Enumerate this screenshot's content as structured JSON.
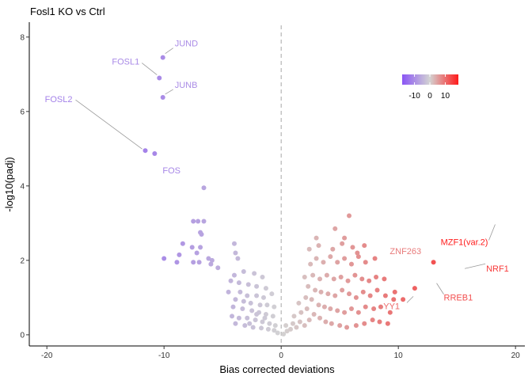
{
  "chart_data": {
    "type": "scatter",
    "title": "Fosl1 KO vs Ctrl",
    "xlabel": "Bias corrected deviations",
    "ylabel": "-log10(padj)",
    "xlim": [
      -21.5,
      20.8
    ],
    "ylim": [
      -0.3,
      8.4
    ],
    "xticks": [
      -20,
      -10,
      0,
      10,
      20
    ],
    "yticks": [
      0,
      2,
      4,
      6,
      8
    ],
    "vline_x": 0,
    "colorscale": {
      "low": "#8a55f5",
      "mid": "#d3d3d3",
      "high": "#ff1a1a",
      "ticks": [
        -10,
        0,
        10
      ],
      "limits": [
        -18,
        18.5
      ],
      "placement": "top-right"
    },
    "labeled_points": [
      {
        "label": "JUND",
        "x": -10.1,
        "y": 7.45
      },
      {
        "label": "FOSL1",
        "x": -10.4,
        "y": 6.9
      },
      {
        "label": "JUNB",
        "x": -10.1,
        "y": 6.38
      },
      {
        "label": "FOSL2",
        "x": -11.6,
        "y": 4.95
      },
      {
        "label": "FOS",
        "x": -10.8,
        "y": 4.87
      },
      {
        "label": "MZF1(var.2)",
        "x": 18.4,
        "y": 3.05
      },
      {
        "label": "ZNF263",
        "x": 8.8,
        "y": 2.3
      },
      {
        "label": "NRF1",
        "x": 15.4,
        "y": 1.78
      },
      {
        "label": "RREB1",
        "x": 13.2,
        "y": 1.45
      },
      {
        "label": "YY1",
        "x": 10.6,
        "y": 0.82
      }
    ],
    "points": [
      [
        -10.1,
        7.45
      ],
      [
        -10.4,
        6.9
      ],
      [
        -10.1,
        6.38
      ],
      [
        -11.6,
        4.95
      ],
      [
        -10.8,
        4.87
      ],
      [
        -6.6,
        3.95
      ],
      [
        -7.5,
        3.05
      ],
      [
        -7.1,
        3.05
      ],
      [
        -6.6,
        3.05
      ],
      [
        -6.9,
        2.75
      ],
      [
        -6.8,
        2.7
      ],
      [
        -8.4,
        2.45
      ],
      [
        -7.6,
        2.35
      ],
      [
        -6.9,
        2.35
      ],
      [
        -4.0,
        2.45
      ],
      [
        -10.0,
        2.05
      ],
      [
        -8.7,
        2.15
      ],
      [
        -7.2,
        2.2
      ],
      [
        -6.2,
        2.05
      ],
      [
        -5.9,
        2.0
      ],
      [
        -3.9,
        2.2
      ],
      [
        -3.7,
        2.05
      ],
      [
        -8.9,
        1.95
      ],
      [
        -7.5,
        1.95
      ],
      [
        -7.0,
        1.95
      ],
      [
        -6.0,
        1.9
      ],
      [
        -5.4,
        1.8
      ],
      [
        -4.0,
        1.6
      ],
      [
        -3.2,
        1.7
      ],
      [
        -2.3,
        1.65
      ],
      [
        -1.6,
        1.55
      ],
      [
        -4.3,
        1.45
      ],
      [
        -3.6,
        1.4
      ],
      [
        -2.8,
        1.35
      ],
      [
        -2.1,
        1.3
      ],
      [
        -1.3,
        1.25
      ],
      [
        -4.5,
        1.15
      ],
      [
        -3.5,
        1.15
      ],
      [
        -2.9,
        1.05
      ],
      [
        -2.1,
        1.05
      ],
      [
        -1.5,
        1.0
      ],
      [
        -0.8,
        1.1
      ],
      [
        -3.9,
        0.95
      ],
      [
        -3.2,
        0.9
      ],
      [
        -2.6,
        0.85
      ],
      [
        -1.8,
        0.8
      ],
      [
        -1.2,
        0.8
      ],
      [
        -0.6,
        0.75
      ],
      [
        -4.1,
        0.75
      ],
      [
        -3.3,
        0.7
      ],
      [
        -2.5,
        0.65
      ],
      [
        -1.9,
        0.6
      ],
      [
        -1.3,
        0.55
      ],
      [
        -0.7,
        0.5
      ],
      [
        -4.2,
        0.5
      ],
      [
        -3.6,
        0.45
      ],
      [
        -2.9,
        0.45
      ],
      [
        -2.2,
        0.4
      ],
      [
        -1.6,
        0.35
      ],
      [
        -1.0,
        0.3
      ],
      [
        -0.5,
        0.25
      ],
      [
        -3.9,
        0.3
      ],
      [
        -3.1,
        0.25
      ],
      [
        -2.4,
        0.2
      ],
      [
        -1.7,
        0.18
      ],
      [
        -1.1,
        0.15
      ],
      [
        -0.6,
        0.12
      ],
      [
        -0.3,
        0.05
      ],
      [
        -2.1,
        0.55
      ],
      [
        -2.7,
        0.3
      ],
      [
        -1.4,
        0.45
      ],
      [
        0.2,
        0.02
      ],
      [
        0.5,
        0.1
      ],
      [
        0.8,
        0.15
      ],
      [
        0.4,
        0.25
      ],
      [
        1.0,
        0.3
      ],
      [
        1.3,
        0.2
      ],
      [
        1.6,
        0.35
      ],
      [
        2.0,
        0.25
      ],
      [
        2.4,
        0.4
      ],
      [
        1.1,
        0.5
      ],
      [
        1.7,
        0.6
      ],
      [
        2.2,
        0.7
      ],
      [
        2.8,
        0.55
      ],
      [
        3.3,
        0.45
      ],
      [
        3.8,
        0.35
      ],
      [
        4.3,
        0.3
      ],
      [
        5.0,
        0.25
      ],
      [
        5.6,
        0.2
      ],
      [
        6.4,
        0.25
      ],
      [
        7.1,
        0.3
      ],
      [
        7.8,
        0.4
      ],
      [
        8.4,
        0.35
      ],
      [
        9.1,
        0.3
      ],
      [
        1.5,
        0.85
      ],
      [
        2.1,
        1.0
      ],
      [
        2.6,
        0.95
      ],
      [
        3.2,
        0.8
      ],
      [
        3.7,
        0.75
      ],
      [
        4.2,
        0.7
      ],
      [
        4.8,
        0.65
      ],
      [
        5.4,
        0.6
      ],
      [
        6.0,
        0.7
      ],
      [
        6.6,
        0.6
      ],
      [
        7.2,
        0.75
      ],
      [
        7.9,
        0.7
      ],
      [
        8.5,
        0.75
      ],
      [
        9.3,
        0.6
      ],
      [
        2.3,
        1.3
      ],
      [
        2.9,
        1.2
      ],
      [
        3.4,
        1.15
      ],
      [
        4.0,
        1.1
      ],
      [
        4.6,
        1.05
      ],
      [
        5.2,
        1.2
      ],
      [
        5.8,
        1.1
      ],
      [
        6.4,
        1.0
      ],
      [
        7.0,
        1.15
      ],
      [
        7.6,
        1.05
      ],
      [
        8.2,
        1.2
      ],
      [
        8.9,
        1.05
      ],
      [
        9.6,
        0.95
      ],
      [
        2.0,
        1.55
      ],
      [
        2.7,
        1.6
      ],
      [
        3.3,
        1.5
      ],
      [
        3.9,
        1.6
      ],
      [
        4.5,
        1.5
      ],
      [
        5.1,
        1.55
      ],
      [
        5.7,
        1.45
      ],
      [
        6.3,
        1.6
      ],
      [
        6.9,
        1.5
      ],
      [
        7.5,
        1.45
      ],
      [
        8.1,
        1.55
      ],
      [
        8.8,
        1.5
      ],
      [
        2.5,
        1.9
      ],
      [
        3.0,
        2.05
      ],
      [
        3.6,
        1.95
      ],
      [
        4.2,
        2.1
      ],
      [
        4.8,
        1.95
      ],
      [
        5.4,
        2.05
      ],
      [
        6.0,
        1.9
      ],
      [
        6.6,
        2.1
      ],
      [
        7.2,
        1.95
      ],
      [
        8.0,
        2.05
      ],
      [
        2.4,
        2.3
      ],
      [
        3.2,
        2.4
      ],
      [
        4.4,
        2.3
      ],
      [
        5.2,
        2.45
      ],
      [
        6.1,
        2.35
      ],
      [
        7.1,
        2.4
      ],
      [
        3.0,
        2.6
      ],
      [
        5.4,
        2.6
      ],
      [
        5.8,
        3.2
      ],
      [
        4.6,
        2.85
      ],
      [
        6.5,
        2.2
      ],
      [
        9.7,
        1.15
      ],
      [
        10.4,
        0.95
      ],
      [
        11.4,
        1.25
      ],
      [
        13.0,
        1.95
      ]
    ]
  }
}
